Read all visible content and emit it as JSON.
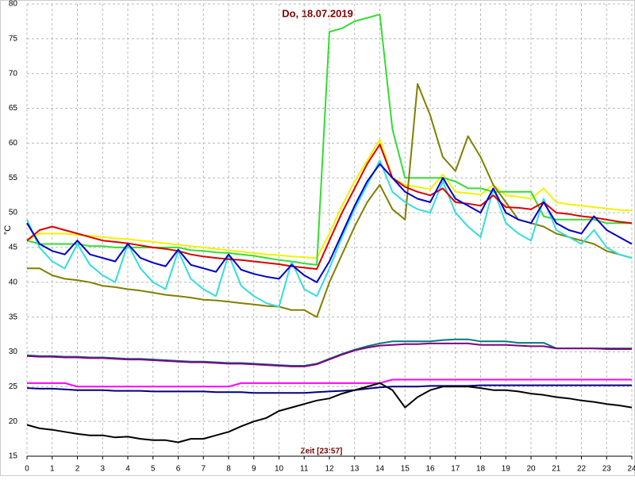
{
  "chart_data": {
    "type": "line",
    "title": "Do, 18.07.2019",
    "y_label": "°C",
    "x_label": "Zeit [23:57]",
    "x": [
      0,
      0.5,
      1,
      1.5,
      2,
      2.5,
      3,
      3.5,
      4,
      4.5,
      5,
      5.5,
      6,
      6.5,
      7,
      7.5,
      8,
      8.5,
      9,
      9.5,
      10,
      10.5,
      11,
      11.5,
      12,
      12.5,
      13,
      13.5,
      14,
      14.5,
      15,
      15.5,
      16,
      16.5,
      17,
      17.5,
      18,
      18.5,
      19,
      19.5,
      20,
      20.5,
      21,
      21.5,
      22,
      22.5,
      23,
      23.5,
      24
    ],
    "xlim": [
      0,
      24
    ],
    "xticks": [
      0,
      1,
      2,
      3,
      4,
      5,
      6,
      7,
      8,
      9,
      10,
      11,
      12,
      13,
      14,
      15,
      16,
      17,
      18,
      19,
      20,
      21,
      22,
      23,
      24
    ],
    "ylim": [
      15,
      80
    ],
    "yticks": [
      15,
      20,
      25,
      30,
      35,
      40,
      45,
      50,
      55,
      60,
      65,
      70,
      75,
      80
    ],
    "grid": true,
    "series": [
      {
        "color": "#f2f200",
        "values": [
          46,
          47,
          47,
          47,
          46.8,
          46.7,
          46.5,
          46.3,
          46.2,
          46,
          45.8,
          45.6,
          45.4,
          45.2,
          45,
          44.8,
          44.6,
          44.4,
          44.2,
          44,
          43.9,
          43.7,
          43.6,
          43.5,
          47,
          51,
          54.5,
          57.5,
          60.5,
          55,
          54,
          53.7,
          53.4,
          55.5,
          53,
          52.8,
          52.6,
          54,
          52.5,
          52.3,
          52,
          53.5,
          51.5,
          51.2,
          51,
          50.8,
          50.6,
          50.4,
          50.3
        ]
      },
      {
        "color": "#33dd33",
        "values": [
          46,
          45.5,
          45.5,
          45.5,
          45.5,
          45.2,
          45.2,
          45,
          45,
          45,
          45,
          45,
          45,
          44.6,
          44.5,
          44.3,
          44.2,
          44,
          43.8,
          43.5,
          43.2,
          43,
          42.7,
          42.5,
          76,
          76.5,
          77.5,
          78,
          78.5,
          62,
          55,
          55,
          55,
          55,
          54.5,
          53.5,
          53.5,
          53,
          53,
          53,
          53,
          49.5,
          49,
          49,
          49,
          49,
          48.5,
          48.5,
          48.5
        ]
      },
      {
        "color": "#808000",
        "values": [
          42,
          42,
          41,
          40.5,
          40.3,
          40,
          39.5,
          39.3,
          39,
          38.8,
          38.5,
          38.2,
          38,
          37.8,
          37.5,
          37.4,
          37.2,
          37,
          36.8,
          36.6,
          36.5,
          36,
          36,
          35,
          40,
          44,
          48,
          51.5,
          54,
          50.5,
          49,
          68.5,
          64,
          58,
          56,
          61,
          58,
          54,
          51.5,
          49,
          48.5,
          48,
          47,
          46.5,
          46,
          45.5,
          44.5,
          44,
          43.5
        ]
      },
      {
        "color": "#33dddd",
        "values": [
          49,
          45,
          43,
          42,
          45.5,
          42.5,
          41,
          40,
          45.5,
          42,
          40,
          39,
          44.5,
          40.5,
          39,
          38,
          44,
          39.5,
          38,
          37,
          36.5,
          43,
          39,
          38,
          42,
          46.5,
          50.5,
          54,
          57.5,
          53,
          51.5,
          50.5,
          50,
          54.5,
          50,
          48,
          46.5,
          53.5,
          48.5,
          47,
          46,
          52,
          47.5,
          46.5,
          45.5,
          47.5,
          45,
          44,
          43.5
        ]
      },
      {
        "color": "#dd0000",
        "values": [
          46,
          47.5,
          48,
          47.5,
          47,
          46.5,
          46,
          45.8,
          45.6,
          45.3,
          45,
          44.8,
          44.5,
          44,
          43.7,
          43.5,
          43.3,
          43.2,
          43,
          42.8,
          42.6,
          42.3,
          42.1,
          41.9,
          46,
          50,
          53.5,
          57,
          59.8,
          55,
          53.7,
          53,
          52.5,
          53.5,
          51.5,
          51.3,
          51,
          52.5,
          50.8,
          50.7,
          50.5,
          51.5,
          50,
          49.8,
          49.5,
          49.3,
          49,
          48.7,
          48.5
        ]
      },
      {
        "color": "#0000cc",
        "values": [
          48.5,
          45.5,
          44.5,
          44,
          46,
          44,
          43.5,
          43,
          45.5,
          43.5,
          42.8,
          42.3,
          44.7,
          42.5,
          42,
          41.5,
          44,
          41.8,
          41.2,
          40.8,
          40.5,
          42.5,
          41,
          40,
          43,
          47,
          51,
          54.5,
          57,
          55,
          53,
          52,
          51.5,
          55,
          52,
          51,
          50,
          53.5,
          50,
          49,
          48.5,
          51.5,
          48.5,
          47.5,
          47,
          49.5,
          47.5,
          46.5,
          45.5
        ]
      },
      {
        "color": "#007b7b",
        "values": [
          29.5,
          29.4,
          29.4,
          29.3,
          29.3,
          29.2,
          29.2,
          29.1,
          29,
          29,
          28.9,
          28.8,
          28.7,
          28.6,
          28.6,
          28.5,
          28.4,
          28.4,
          28.3,
          28.2,
          28.1,
          28,
          28,
          28.3,
          29,
          29.7,
          30.3,
          30.8,
          31.2,
          31.5,
          31.5,
          31.5,
          31.5,
          31.7,
          31.8,
          31.8,
          31.5,
          31.5,
          31.5,
          31.3,
          31.3,
          31.3,
          30.5,
          30.5,
          30.5,
          30.5,
          30.5,
          30.5,
          30.5
        ]
      },
      {
        "color": "#800080",
        "values": [
          29.4,
          29.3,
          29.3,
          29.2,
          29.2,
          29.1,
          29.1,
          29,
          28.9,
          28.9,
          28.8,
          28.7,
          28.6,
          28.5,
          28.5,
          28.4,
          28.3,
          28.3,
          28.2,
          28.1,
          28,
          27.9,
          27.9,
          28.2,
          28.9,
          29.6,
          30.2,
          30.6,
          30.9,
          31,
          31.1,
          31.1,
          31.2,
          31.2,
          31.2,
          31.2,
          31,
          31,
          31,
          30.9,
          30.8,
          30.8,
          30.5,
          30.5,
          30.5,
          30.5,
          30.4,
          30.4,
          30.4
        ]
      },
      {
        "color": "#ff00ff",
        "values": [
          25.5,
          25.5,
          25.5,
          25.5,
          25,
          25,
          25,
          25,
          25,
          25,
          25,
          25,
          25,
          25,
          25,
          25,
          25,
          25.5,
          25.5,
          25.5,
          25.5,
          25.5,
          25.5,
          25.5,
          25.5,
          25.5,
          25.5,
          25.5,
          25.5,
          26,
          26,
          26,
          26,
          26,
          26,
          26,
          26,
          26,
          26,
          26,
          26,
          26,
          26,
          26,
          26,
          26,
          26,
          26,
          26
        ]
      },
      {
        "color": "#000080",
        "values": [
          24.8,
          24.7,
          24.7,
          24.6,
          24.5,
          24.5,
          24.5,
          24.4,
          24.4,
          24.4,
          24.3,
          24.3,
          24.3,
          24.3,
          24.3,
          24.2,
          24.2,
          24.2,
          24.1,
          24.1,
          24.1,
          24.1,
          24.1,
          24.2,
          24.3,
          24.4,
          24.5,
          24.7,
          24.9,
          25,
          25,
          25,
          25.1,
          25.1,
          25.1,
          25.1,
          25.2,
          25.2,
          25.2,
          25.2,
          25.2,
          25.2,
          25.2,
          25.2,
          25.2,
          25.2,
          25.2,
          25.2,
          25.2
        ]
      },
      {
        "color": "#000000",
        "values": [
          19.5,
          19,
          18.8,
          18.5,
          18.2,
          18,
          18,
          17.7,
          17.8,
          17.5,
          17.3,
          17.3,
          17,
          17.5,
          17.5,
          18,
          18.5,
          19.3,
          20,
          20.5,
          21.5,
          22,
          22.5,
          23,
          23.3,
          24,
          24.5,
          25,
          25.5,
          24.5,
          22,
          23.5,
          24.5,
          25,
          25,
          25,
          24.8,
          24.5,
          24.5,
          24.3,
          24,
          23.8,
          23.5,
          23.3,
          23,
          22.8,
          22.5,
          22.3,
          22
        ]
      }
    ]
  }
}
